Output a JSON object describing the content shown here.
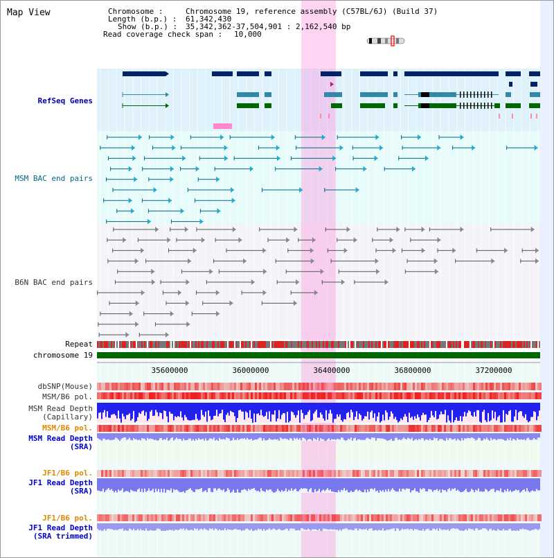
{
  "title": "Map View",
  "header": {
    "chromosome_key": "Chromosome     :",
    "chromosome_val": "Chromosome 19, reference assembly (C57BL/6J) (Build 37)",
    "length_key": "Length (b.p.) :",
    "length_val": "61,342,430",
    "show_key": "Show (b.p.) :",
    "show_val": "35,342,362-37,504,901 : 2,162,540 bp",
    "coverage_key": "Read coverage check span :",
    "coverage_val": "10,000"
  },
  "tracks": {
    "refseq": "RefSeq Genes",
    "msm_bac": "MSM BAC end pairs",
    "b6n_bac": "B6N BAC end pairs",
    "repeat": "Repeat",
    "chromosome": "chromosome 19",
    "dbsnp": "dbSNP(Mouse)",
    "msm_b6_pol_1": "MSM/B6 pol.",
    "msm_depth_cap_1": "MSM Read Depth",
    "msm_depth_cap_2": "(Capillary)",
    "msm_b6_pol_2": "MSM/B6 pol.",
    "msm_depth_sra_1": "MSM Read Depth",
    "msm_depth_sra_2": "(SRA)",
    "jf1_b6_pol_1": "JF1/B6 pol.",
    "jf1_depth_sra_1": "JF1 Read Depth",
    "jf1_depth_sra_2": "(SRA)",
    "jf1_b6_pol_2": "JF1/B6 pol.",
    "jf1_depth_trim_1": "JF1 Read Depth",
    "jf1_depth_trim_2": "(SRA trimmed)"
  },
  "axis": {
    "ticks": [
      "35600000",
      "36000000",
      "36400000",
      "36800000",
      "37200000"
    ]
  },
  "colors": {
    "refseq_label": "#0000aa",
    "msm_label": "#006688",
    "b6n_label": "#333333",
    "pol_label": "#dd8800",
    "sra_label": "#0000cc",
    "highlight": "#ff88dd",
    "gene_dark": "#002266",
    "gene_mid": "#3388aa",
    "gene_green": "#006600",
    "chrom_bar": "#006600"
  }
}
